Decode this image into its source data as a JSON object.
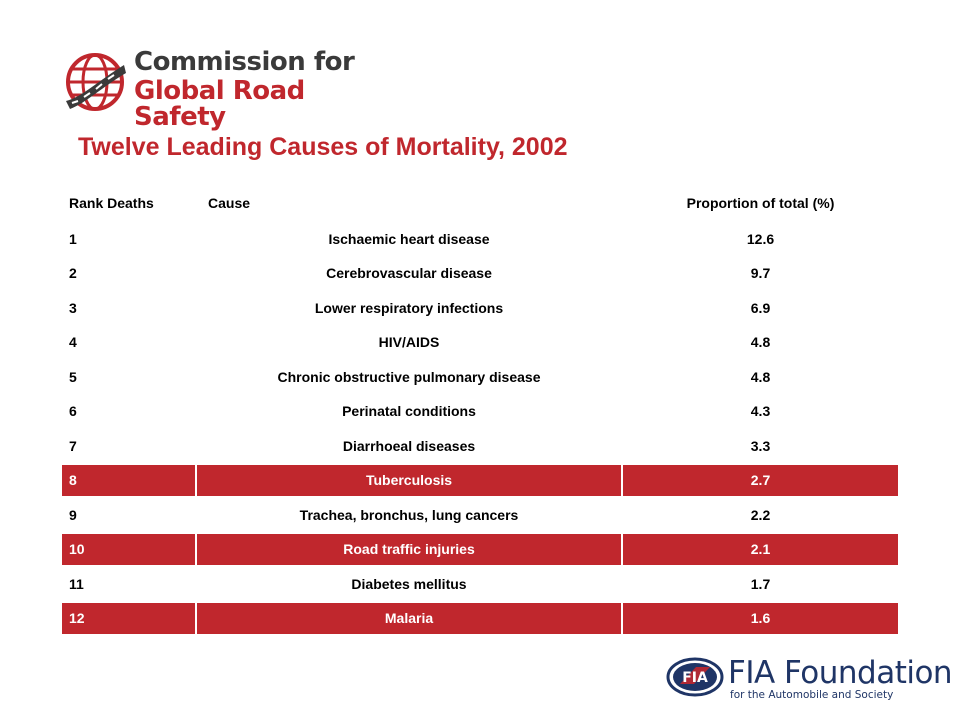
{
  "brand": {
    "line1": "Commission for",
    "line2": "Global Road Safety"
  },
  "title": "Twelve Leading Causes of Mortality, 2002",
  "table": {
    "headers": {
      "rank": "Rank Deaths",
      "cause": "Cause",
      "proportion": "Proportion  of total (%)"
    },
    "rows": [
      {
        "rank": "1",
        "cause": "Ischaemic  heart disease",
        "proportion": "12.6"
      },
      {
        "rank": "2",
        "cause": "Cerebrovascular  disease",
        "proportion": "9.7"
      },
      {
        "rank": "3",
        "cause": "Lower respiratory infections",
        "proportion": "6.9"
      },
      {
        "rank": "4",
        "cause": "HIV/AIDS",
        "proportion": "4.8"
      },
      {
        "rank": "5",
        "cause": "Chronic obstructive  pulmonary  disease",
        "proportion": "4.8"
      },
      {
        "rank": "6",
        "cause": "Perinatal conditions",
        "proportion": "4.3"
      },
      {
        "rank": "7",
        "cause": "Diarrhoeal  diseases",
        "proportion": "3.3"
      },
      {
        "rank": "8",
        "cause": "Tuberculosis",
        "proportion": "2.7"
      },
      {
        "rank": "9",
        "cause": "Trachea,  bronchus,  lung cancers",
        "proportion": "2.2"
      },
      {
        "rank": "10",
        "cause": "Road traffic injuries",
        "proportion": "2.1"
      },
      {
        "rank": "11",
        "cause": "Diabetes  mellitus",
        "proportion": "1.7"
      },
      {
        "rank": "12",
        "cause": "Malaria",
        "proportion": "1.6"
      }
    ]
  },
  "footer_logo": {
    "emblem_text": "FIA",
    "name": "FIA Foundation",
    "tagline": "for the Automobile and Society"
  },
  "colors": {
    "accent": "#c0272d",
    "highlight_text": "#ffffff",
    "fia_blue": "#1f3566"
  }
}
